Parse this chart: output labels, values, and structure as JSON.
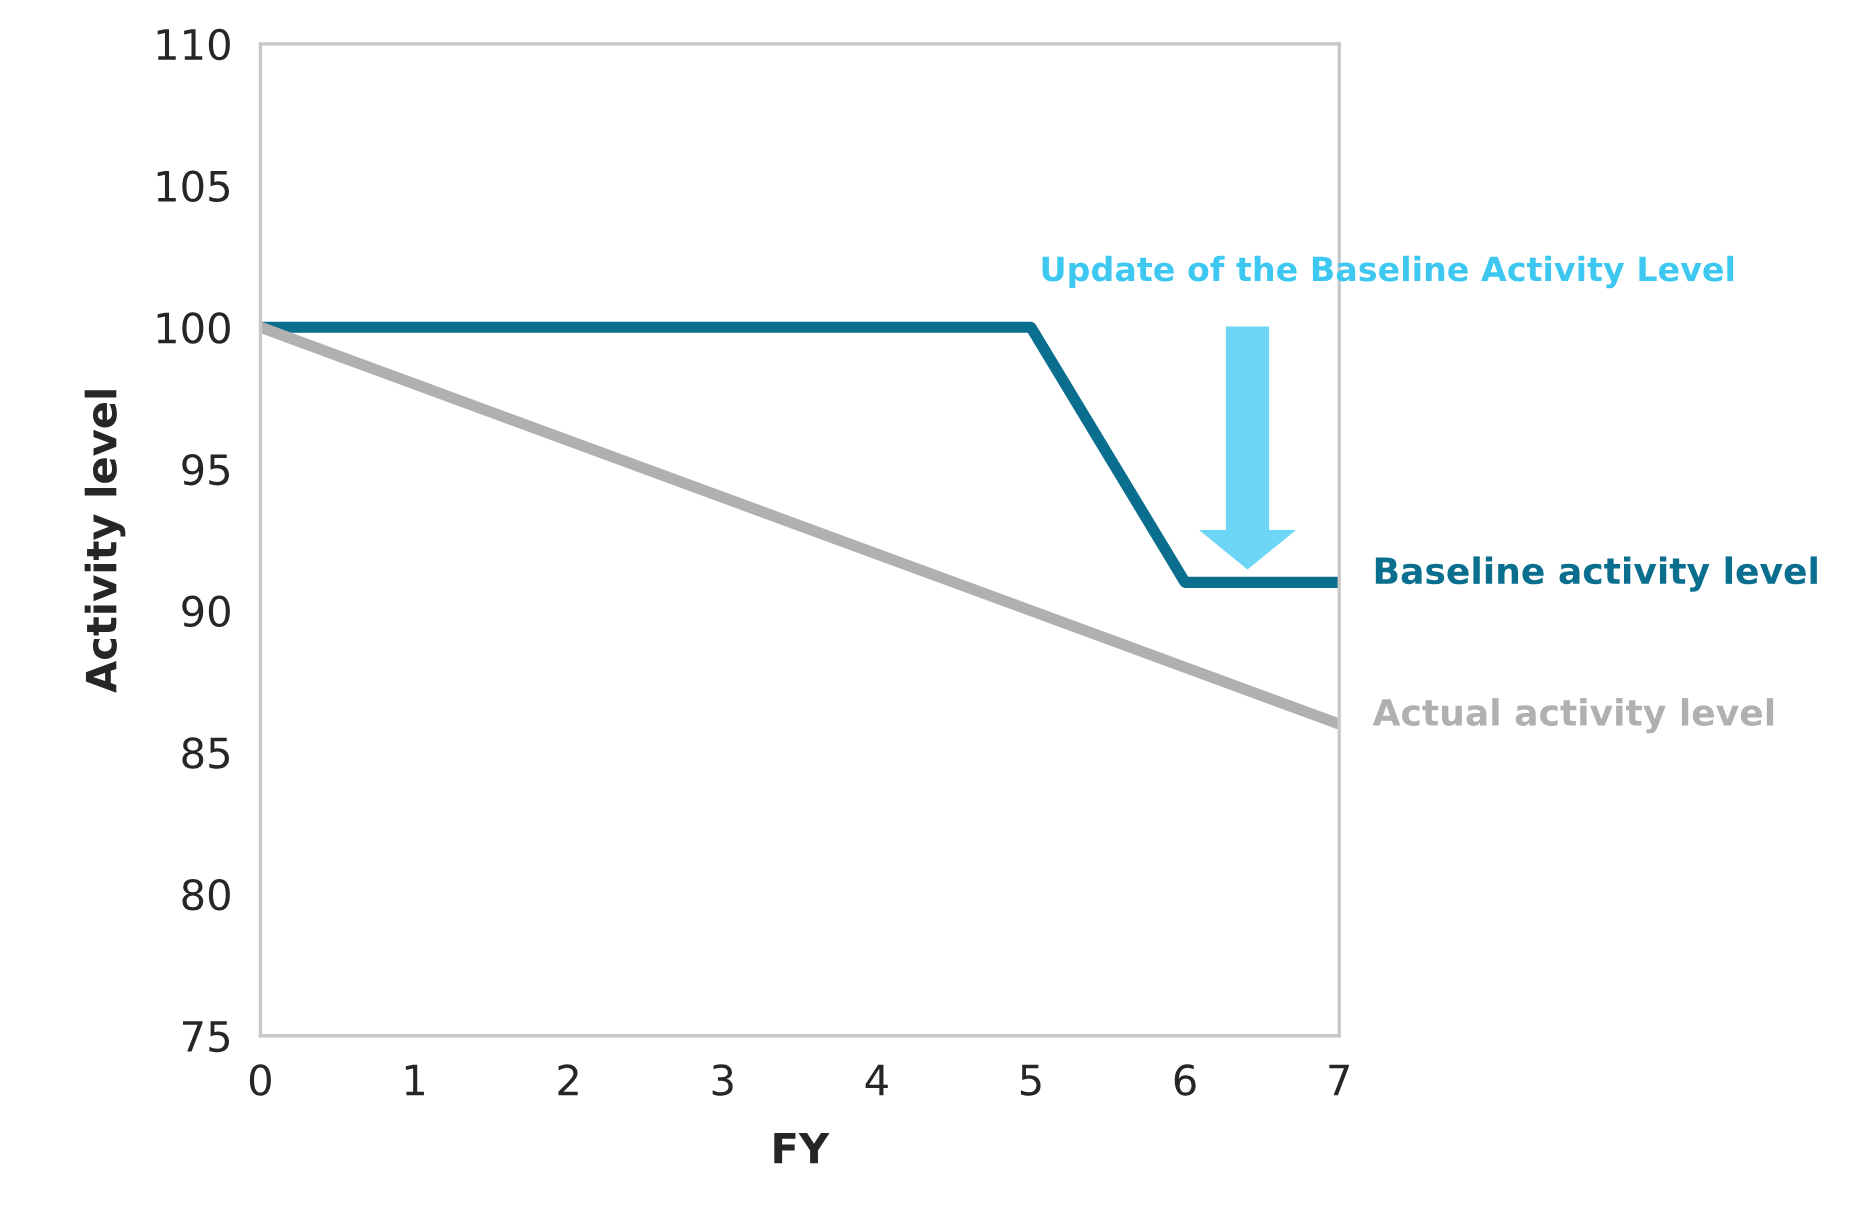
{
  "chart_data": {
    "type": "line",
    "xlabel": "FY",
    "ylabel": "Activity level",
    "xlim": [
      0,
      7
    ],
    "xticks": [
      0,
      1,
      2,
      3,
      4,
      5,
      6,
      7
    ],
    "ylim": [
      75,
      110
    ],
    "yticks": [
      75,
      80,
      85,
      90,
      95,
      100,
      105,
      110
    ],
    "grid": false,
    "series": [
      {
        "name": "Baseline activity level",
        "color": "#0a6e8e",
        "x": [
          0,
          5,
          6,
          7
        ],
        "values": [
          100,
          100,
          91,
          91
        ]
      },
      {
        "name": "Actual activity level",
        "color": "#b0b0b0",
        "x": [
          0,
          7
        ],
        "values": [
          100,
          86
        ]
      }
    ],
    "annotations": [
      "Update of the Baseline Activity Level"
    ]
  }
}
